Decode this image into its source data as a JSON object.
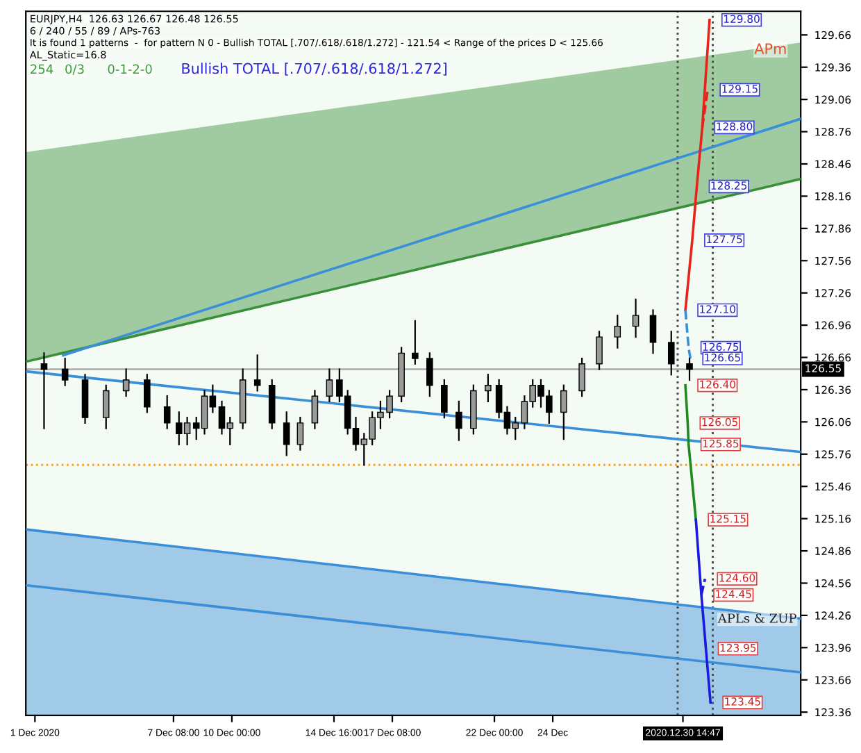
{
  "chart_data": {
    "type": "candlestick",
    "annotations": [
      "EURJPY,H4  126.63 126.67 126.48 126.55",
      "6 / 240 / 55 / 89 / APs-763",
      "It is found 1 patterns  -  for pattern N 0 - Bullish TOTAL [.707/.618/.618/1.272] - 121.54 < Range of the prices D < 125.66",
      "AL_Static=16.8",
      "254",
      "0/3",
      "0-1-2-0",
      "Bullish TOTAL [.707/.618/.618/1.272]",
      "APm",
      "APLs & ZUP",
      {
        "text": "129.80",
        "x": "2020-12-31T20:00",
        "y": 129.8
      },
      {
        "text": "129.15",
        "x": "2020-12-31T18:00",
        "y": 129.15
      },
      {
        "text": "128.80",
        "x": "2020-12-31T12:00",
        "y": 128.8
      },
      {
        "text": "128.25",
        "x": "2020-12-31T06:00",
        "y": 128.25
      },
      {
        "text": "127.75",
        "x": "2020-12-31T01:00",
        "y": 127.75
      },
      {
        "text": "127.10",
        "x": "2020-12-30T17:30",
        "y": 127.1
      },
      {
        "text": "126.75",
        "x": "2020-12-30T21:00",
        "y": 126.75
      },
      {
        "text": "126.65",
        "x": "2020-12-30T23:00",
        "y": 126.65
      },
      {
        "text": "126.40",
        "x": "2020-12-30T17:30",
        "y": 126.4
      },
      {
        "text": "126.05",
        "x": "2020-12-30T20:00",
        "y": 126.05
      },
      {
        "text": "125.85",
        "x": "2020-12-30T21:00",
        "y": 125.85
      },
      {
        "text": "125.15",
        "x": "2020-12-31T05:00",
        "y": 125.15
      },
      {
        "text": "124.60",
        "x": "2020-12-31T15:00",
        "y": 124.6
      },
      {
        "text": "124.45",
        "x": "2020-12-31T11:00",
        "y": 124.45
      },
      {
        "text": "123.95",
        "x": "2020-12-31T16:00",
        "y": 123.95
      },
      {
        "text": "123.45",
        "x": "2020-12-31T21:00",
        "y": 123.45
      }
    ],
    "x": [
      "2020-12-01T10:00",
      "2020-12-02T09:00",
      "2020-12-03T07:00",
      "2020-12-04T06:00",
      "2020-12-05T04:00",
      "2020-12-06T03:00",
      "2020-12-07T01:00",
      "2020-12-07T14:00",
      "2020-12-07T23:00",
      "2020-12-08T09:00",
      "2020-12-08T18:00",
      "2020-12-09T03:00",
      "2020-12-09T13:00",
      "2020-12-09T22:00",
      "2020-12-10T12:00",
      "2020-12-11T04:00",
      "2020-12-11T20:00",
      "2020-12-12T12:00",
      "2020-12-13T03:00",
      "2020-12-13T19:00",
      "2020-12-14T11:00",
      "2020-12-14T22:00",
      "2020-12-15T07:00",
      "2020-12-15T16:00",
      "2020-12-16T01:00",
      "2020-12-16T10:00",
      "2020-12-16T19:00",
      "2020-12-17T05:00",
      "2020-12-17T18:00",
      "2020-12-18T09:00",
      "2020-12-19T01:00",
      "2020-12-19T17:00",
      "2020-12-20T09:00",
      "2020-12-21T01:00",
      "2020-12-21T17:00",
      "2020-12-22T05:00",
      "2020-12-22T14:00",
      "2020-12-22T23:00",
      "2020-12-23T09:00",
      "2020-12-23T18:00",
      "2020-12-24T03:00",
      "2020-12-24T12:00",
      "2020-12-25T04:00",
      "2020-12-26T00:00",
      "2020-12-26T19:00",
      "2020-12-27T15:00",
      "2020-12-28T11:00",
      "2020-12-29T06:00",
      "2020-12-30T02:00",
      "2020-12-30T22:00"
    ],
    "ohlc": [
      [
        126.6,
        126.7,
        126.0,
        126.55
      ],
      [
        126.55,
        126.65,
        126.4,
        126.45
      ],
      [
        126.45,
        126.5,
        126.05,
        126.1
      ],
      [
        126.1,
        126.4,
        126.0,
        126.35
      ],
      [
        126.35,
        126.55,
        126.3,
        126.45
      ],
      [
        126.45,
        126.5,
        126.15,
        126.2
      ],
      [
        126.2,
        126.3,
        126.0,
        126.05
      ],
      [
        126.05,
        126.15,
        125.85,
        125.95
      ],
      [
        125.95,
        126.1,
        125.85,
        126.05
      ],
      [
        126.05,
        126.1,
        125.9,
        126.0
      ],
      [
        126.0,
        126.35,
        125.95,
        126.3
      ],
      [
        126.3,
        126.4,
        126.15,
        126.2
      ],
      [
        126.2,
        126.25,
        125.95,
        126.0
      ],
      [
        126.0,
        126.1,
        125.85,
        126.05
      ],
      [
        126.05,
        126.55,
        126.0,
        126.45
      ],
      [
        126.45,
        126.68,
        126.35,
        126.4
      ],
      [
        126.4,
        126.45,
        126.0,
        126.05
      ],
      [
        126.05,
        126.15,
        125.75,
        125.85
      ],
      [
        125.85,
        126.1,
        125.8,
        126.05
      ],
      [
        126.05,
        126.35,
        126.0,
        126.3
      ],
      [
        126.3,
        126.55,
        126.25,
        126.45
      ],
      [
        126.45,
        126.55,
        126.25,
        126.3
      ],
      [
        126.3,
        126.35,
        125.95,
        126.0
      ],
      [
        126.0,
        126.1,
        125.8,
        125.85
      ],
      [
        125.85,
        125.95,
        125.66,
        125.9
      ],
      [
        125.9,
        126.15,
        125.85,
        126.1
      ],
      [
        126.1,
        126.25,
        126.0,
        126.15
      ],
      [
        126.15,
        126.35,
        126.1,
        126.3
      ],
      [
        126.3,
        126.75,
        126.25,
        126.7
      ],
      [
        126.7,
        127.0,
        126.6,
        126.65
      ],
      [
        126.65,
        126.7,
        126.3,
        126.4
      ],
      [
        126.4,
        126.45,
        126.1,
        126.15
      ],
      [
        126.15,
        126.25,
        125.89,
        126.0
      ],
      [
        126.0,
        126.4,
        125.95,
        126.35
      ],
      [
        126.35,
        126.5,
        126.25,
        126.4
      ],
      [
        126.4,
        126.45,
        126.1,
        126.15
      ],
      [
        126.15,
        126.2,
        125.95,
        126.0
      ],
      [
        126.0,
        126.1,
        125.9,
        126.05
      ],
      [
        126.05,
        126.3,
        126.0,
        126.25
      ],
      [
        126.25,
        126.45,
        126.2,
        126.4
      ],
      [
        126.4,
        126.45,
        126.2,
        126.3
      ],
      [
        126.3,
        126.35,
        126.05,
        126.15
      ],
      [
        126.15,
        126.4,
        125.9,
        126.35
      ],
      [
        126.35,
        126.65,
        126.3,
        126.6
      ],
      [
        126.6,
        126.9,
        126.55,
        126.85
      ],
      [
        126.85,
        127.05,
        126.75,
        126.95
      ],
      [
        126.95,
        127.2,
        126.85,
        127.05
      ],
      [
        127.05,
        127.1,
        126.7,
        126.8
      ],
      [
        126.8,
        126.9,
        126.5,
        126.6
      ],
      [
        126.6,
        126.65,
        126.45,
        126.55
      ]
    ],
    "series": [
      {
        "type": "line",
        "color": "#3a8f3a",
        "x": [
          "2020-11-30T14:00",
          "2021-01-05T00:00"
        ],
        "values": [
          126.62,
          128.32
        ],
        "lower": [
          126.62,
          128.32
        ],
        "upper": [
          128.57,
          129.59
        ]
      },
      {
        "type": "line",
        "color": "#3a8fd8",
        "x": [
          "2020-11-30T14:00",
          "2021-01-05T00:00"
        ],
        "values": [
          125.06,
          124.23
        ],
        "lower": [
          123.33,
          123.33
        ],
        "upper": [
          125.06,
          124.23
        ]
      },
      {
        "type": "line",
        "color": "#3a8fd8",
        "x": [
          "2020-12-02T07:00",
          "2021-01-05T00:00"
        ],
        "values": [
          126.68,
          128.88
        ]
      },
      {
        "type": "line",
        "color": "#3a8fd8",
        "x": [
          "2020-11-30T14:00",
          "2021-01-05T00:00"
        ],
        "values": [
          126.53,
          125.78
        ]
      },
      {
        "type": "line",
        "color": "#3a8fd8",
        "x": [
          "2020-11-30T14:00",
          "2021-01-05T00:00"
        ],
        "values": [
          124.54,
          123.73
        ]
      },
      {
        "type": "line",
        "color": "#e8231c",
        "x": [
          "2020-12-30T17:30",
          "2020-12-31T01:00",
          "2020-12-31T06:00",
          "2020-12-31T12:00",
          "2020-12-31T20:00"
        ],
        "values": [
          127.1,
          127.75,
          128.25,
          128.8,
          129.8
        ]
      },
      {
        "type": "line",
        "color": "#e8231c",
        "line_style": "dashed",
        "x": [
          "2020-12-31T12:00",
          "2020-12-31T18:00"
        ],
        "values": [
          128.8,
          129.15
        ]
      },
      {
        "type": "line",
        "color": "#3a8fd8",
        "line_style": "dashed",
        "x": [
          "2020-12-30T17:30",
          "2020-12-30T21:00",
          "2020-12-30T23:00"
        ],
        "values": [
          127.1,
          126.75,
          126.65
        ]
      },
      {
        "type": "line",
        "color": "#1f8a1f",
        "x": [
          "2020-12-30T17:30",
          "2020-12-30T20:00",
          "2020-12-30T21:00",
          "2020-12-31T05:00"
        ],
        "values": [
          126.4,
          126.05,
          125.85,
          125.15
        ]
      },
      {
        "type": "line",
        "color": "#1a1ae0",
        "x": [
          "2020-12-31T05:00",
          "2020-12-31T11:00",
          "2020-12-31T16:00",
          "2020-12-31T21:00"
        ],
        "values": [
          125.15,
          124.45,
          123.95,
          123.45
        ]
      },
      {
        "type": "line",
        "color": "#1a1ae0",
        "line_style": "dashed",
        "x": [
          "2020-12-31T11:00",
          "2020-12-31T15:00"
        ],
        "values": [
          124.45,
          124.6
        ]
      }
    ],
    "xlim": [
      "2020-11-30T14:00",
      "2021-01-05T00:00"
    ],
    "xticks": [
      {
        "value": "2020-12-01T00:00",
        "label": "1 Dec 2020"
      },
      {
        "value": "2020-12-07T08:00",
        "label": "7 Dec 08:00"
      },
      {
        "value": "2020-12-10T00:00",
        "label": "10 Dec 00:00"
      },
      {
        "value": "2020-12-14T16:00",
        "label": "14 Dec 16:00"
      },
      {
        "value": "2020-12-17T08:00",
        "label": "17 Dec 08:00"
      },
      {
        "value": "2020-12-22T00:00",
        "label": "22 Dec 00:00"
      },
      {
        "value": "2020-12-24T16:00",
        "label": "24 Dec"
      },
      {
        "value": "2020-12-30T14:47",
        "label": "2020.12.30 14:47"
      }
    ],
    "ylim": [
      123.33,
      129.88
    ],
    "yticks": [
      {
        "value": 123.36,
        "label": "123.36"
      },
      {
        "value": 123.66,
        "label": "123.66"
      },
      {
        "value": 123.96,
        "label": "123.96"
      },
      {
        "value": 124.26,
        "label": "124.26"
      },
      {
        "value": 124.56,
        "label": "124.56"
      },
      {
        "value": 124.86,
        "label": "124.86"
      },
      {
        "value": 125.16,
        "label": "125.16"
      },
      {
        "value": 125.46,
        "label": "125.46"
      },
      {
        "value": 125.76,
        "label": "125.76"
      },
      {
        "value": 126.06,
        "label": "126.06"
      },
      {
        "value": 126.36,
        "label": "126.36"
      },
      {
        "value": 126.66,
        "label": "126.66"
      },
      {
        "value": 126.96,
        "label": "126.96"
      },
      {
        "value": 127.26,
        "label": "127.26"
      },
      {
        "value": 127.56,
        "label": "127.56"
      },
      {
        "value": 127.86,
        "label": "127.86"
      },
      {
        "value": 128.16,
        "label": "128.16"
      },
      {
        "value": 128.46,
        "label": "128.46"
      },
      {
        "value": 128.76,
        "label": "128.76"
      },
      {
        "value": 129.06,
        "label": "129.06"
      },
      {
        "value": 129.36,
        "label": "129.36"
      },
      {
        "value": 129.66,
        "label": "129.66"
      }
    ],
    "ref_lines": [
      {
        "axis": "y",
        "value": 126.55,
        "label": "126.55",
        "color": "#b0b0b0",
        "line_style": "solid"
      },
      {
        "axis": "y",
        "value": 125.66,
        "color": "#f0a030",
        "line_style": "dotted"
      },
      {
        "axis": "x",
        "value": "2020-12-30T09:00",
        "color": "#505050",
        "line_style": "dotted"
      },
      {
        "axis": "x",
        "value": "2020-12-31T23:30",
        "color": "#505050",
        "line_style": "dotted"
      }
    ],
    "grid": false,
    "legend": false
  }
}
